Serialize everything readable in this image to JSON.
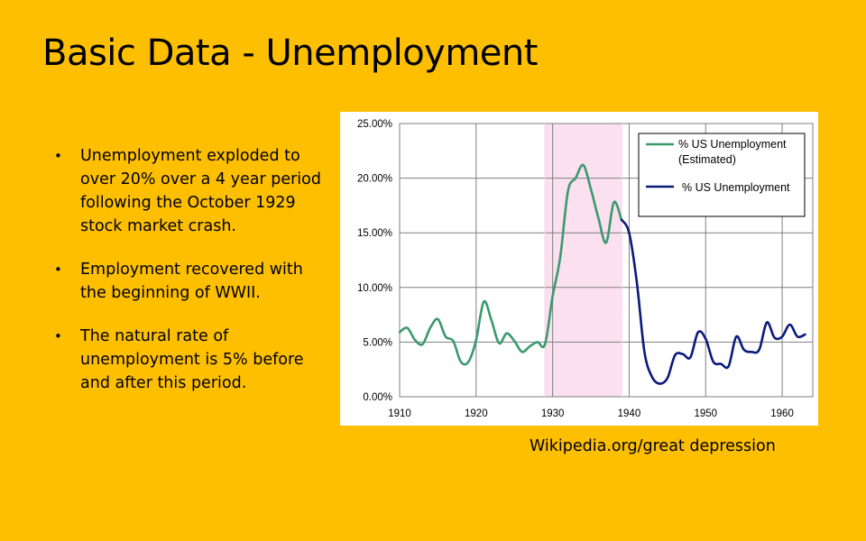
{
  "slide": {
    "title": "Basic Data - Unemployment",
    "bullets": [
      "Unemployment exploded to over 20% over a 4 year period following the October 1929 stock market crash.",
      "Employment recovered with the beginning of WWII.",
      "The natural rate of unemployment is 5% before and after this period."
    ],
    "source": "Wikipedia.org/great depression"
  },
  "colors": {
    "background": "#fdbf00",
    "estimated": "#3a9a6e",
    "measured": "#0a1a7a",
    "highlight": "#fbe0ef",
    "grid": "#7f7f7f"
  },
  "chart_data": {
    "type": "line",
    "xlim": [
      1910,
      1964
    ],
    "ylim": [
      0,
      25
    ],
    "x_ticks": [
      "1910",
      "1920",
      "1930",
      "1940",
      "1950",
      "1960"
    ],
    "y_ticks": [
      "0.00%",
      "5.00%",
      "10.00%",
      "15.00%",
      "20.00%",
      "25.00%"
    ],
    "grid": true,
    "legend_position": "top-right",
    "highlight_range": [
      1929,
      1939
    ],
    "series": [
      {
        "name": "% US Unemployment (Estimated)",
        "name_lines": [
          "% US Unemployment",
          "(Estimated)"
        ],
        "color": "#3a9a6e",
        "points": [
          [
            1910,
            5.9
          ],
          [
            1911,
            6.3
          ],
          [
            1912,
            5.2
          ],
          [
            1913,
            4.8
          ],
          [
            1914,
            6.3
          ],
          [
            1915,
            7.1
          ],
          [
            1916,
            5.5
          ],
          [
            1917,
            5.1
          ],
          [
            1918,
            3.2
          ],
          [
            1919,
            3.2
          ],
          [
            1920,
            5.2
          ],
          [
            1921,
            8.7
          ],
          [
            1922,
            7.0
          ],
          [
            1923,
            4.9
          ],
          [
            1924,
            5.8
          ],
          [
            1925,
            5.1
          ],
          [
            1926,
            4.1
          ],
          [
            1927,
            4.6
          ],
          [
            1928,
            5.0
          ],
          [
            1929,
            4.8
          ],
          [
            1930,
            9.2
          ],
          [
            1931,
            12.8
          ],
          [
            1932,
            18.8
          ],
          [
            1933,
            20.0
          ],
          [
            1934,
            21.2
          ],
          [
            1935,
            19.0
          ],
          [
            1936,
            16.3
          ],
          [
            1937,
            14.1
          ],
          [
            1938,
            17.8
          ],
          [
            1939,
            16.2
          ]
        ]
      },
      {
        "name": "% US Unemployment",
        "name_lines": [
          "% US Unemployment"
        ],
        "color": "#0a1a7a",
        "points": [
          [
            1939,
            16.2
          ],
          [
            1940,
            15.0
          ],
          [
            1941,
            10.5
          ],
          [
            1942,
            4.1
          ],
          [
            1943,
            1.8
          ],
          [
            1944,
            1.2
          ],
          [
            1945,
            1.7
          ],
          [
            1946,
            3.8
          ],
          [
            1947,
            3.9
          ],
          [
            1948,
            3.6
          ],
          [
            1949,
            5.9
          ],
          [
            1950,
            5.3
          ],
          [
            1951,
            3.2
          ],
          [
            1952,
            3.0
          ],
          [
            1953,
            2.8
          ],
          [
            1954,
            5.5
          ],
          [
            1955,
            4.3
          ],
          [
            1956,
            4.1
          ],
          [
            1957,
            4.3
          ],
          [
            1958,
            6.8
          ],
          [
            1959,
            5.4
          ],
          [
            1960,
            5.5
          ],
          [
            1961,
            6.6
          ],
          [
            1962,
            5.5
          ],
          [
            1963,
            5.7
          ]
        ]
      }
    ]
  }
}
